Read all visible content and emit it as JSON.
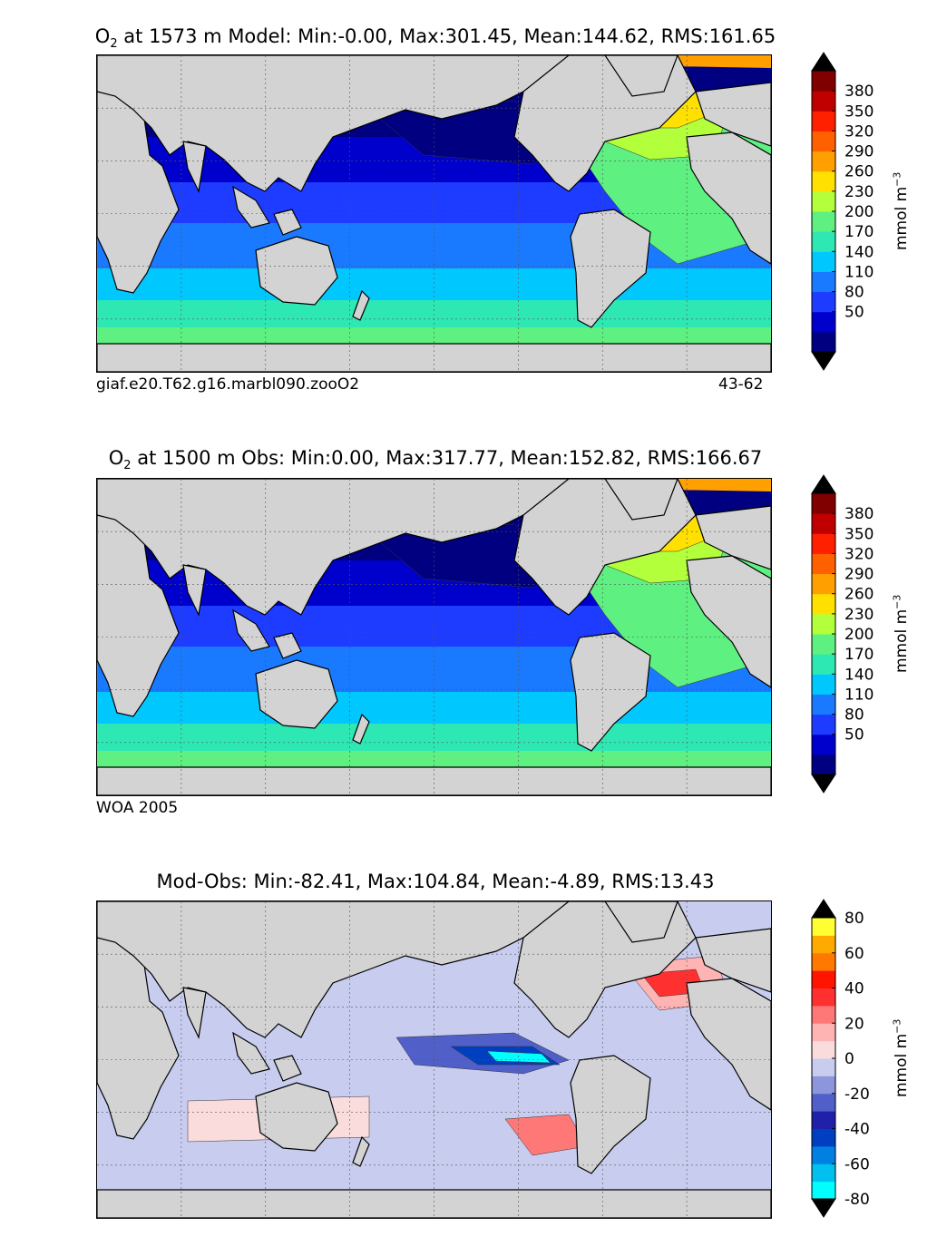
{
  "colors": {
    "land": "#d3d3d3",
    "nodata": "#ffffff",
    "o2_levels": [
      "#000080",
      "#0000cd",
      "#1e3cff",
      "#1a7aff",
      "#00c8ff",
      "#2ee8b4",
      "#5ef080",
      "#b4ff3c",
      "#ffe000",
      "#ffa000",
      "#ff6000",
      "#ff2000",
      "#c00000",
      "#800000"
    ],
    "diff_levels": [
      "#00ffff",
      "#00c0f0",
      "#0080e0",
      "#0040c0",
      "#2020a8",
      "#5060c8",
      "#8c96dc",
      "#c8cdf0",
      "#fadcdc",
      "#ffb4b4",
      "#ff7878",
      "#ff3030",
      "#ff1400",
      "#ff7800",
      "#ffaa00",
      "#ffff32"
    ]
  },
  "panels": [
    {
      "title_pre": "O",
      "title_sub": "2",
      "title_post": "  at 1573 m Model: Min:-0.00, Max:301.45, Mean:144.62, RMS:161.65",
      "footer_left": "giaf.e20.T62.g16.marbl090.zooO2",
      "footer_right": "43-62",
      "colorbar_ticks": [
        "380",
        "350",
        "320",
        "290",
        "260",
        "230",
        "200",
        "170",
        "140",
        "110",
        "80",
        "50"
      ],
      "units": "mmol m",
      "units_sup": "−3"
    },
    {
      "title_pre": "O",
      "title_sub": "2",
      "title_post": "  at 1500 m Obs: Min:0.00, Max:317.77, Mean:152.82, RMS:166.67",
      "footer_left": "WOA 2005",
      "footer_right": "",
      "colorbar_ticks": [
        "380",
        "350",
        "320",
        "290",
        "260",
        "230",
        "200",
        "170",
        "140",
        "110",
        "80",
        "50"
      ],
      "units": "mmol m",
      "units_sup": "−3"
    },
    {
      "title_pre": "",
      "title_sub": "",
      "title_post": "Mod-Obs: Min:-82.41, Max:104.84, Mean:-4.89, RMS:13.43",
      "footer_left": "",
      "footer_right": "",
      "colorbar_ticks": [
        "80",
        "60",
        "40",
        "20",
        "0",
        "-20",
        "-40",
        "-60",
        "-80"
      ],
      "units": "mmol m",
      "units_sup": "−3"
    }
  ],
  "chart_data": [
    {
      "type": "heatmap",
      "title": "O2 at 1573 m Model: Min:-0.00, Max:301.45, Mean:144.62, RMS:161.65",
      "variable": "O2",
      "depth_m": 1573,
      "stats": {
        "min": -0.0,
        "max": 301.45,
        "mean": 144.62,
        "rms": 161.65
      },
      "colorbar_levels": [
        50,
        80,
        110,
        140,
        170,
        200,
        230,
        260,
        290,
        320,
        350,
        380
      ],
      "colorbar_extend": "both",
      "units": "mmol m^-3",
      "grid": true
    },
    {
      "type": "heatmap",
      "title": "O2 at 1500 m Obs: Min:0.00, Max:317.77, Mean:152.82, RMS:166.67",
      "variable": "O2",
      "depth_m": 1500,
      "stats": {
        "min": 0.0,
        "max": 317.77,
        "mean": 152.82,
        "rms": 166.67
      },
      "colorbar_levels": [
        50,
        80,
        110,
        140,
        170,
        200,
        230,
        260,
        290,
        320,
        350,
        380
      ],
      "colorbar_extend": "both",
      "units": "mmol m^-3",
      "grid": true
    },
    {
      "type": "heatmap",
      "title": "Mod-Obs: Min:-82.41, Max:104.84, Mean:-4.89, RMS:13.43",
      "stats": {
        "min": -82.41,
        "max": 104.84,
        "mean": -4.89,
        "rms": 13.43
      },
      "colorbar_levels": [
        -80,
        -70,
        -60,
        -50,
        -40,
        -30,
        -20,
        -10,
        0,
        10,
        20,
        30,
        40,
        50,
        60,
        70,
        80
      ],
      "colorbar_extend": "both",
      "units": "mmol m^-3",
      "grid": true
    }
  ]
}
